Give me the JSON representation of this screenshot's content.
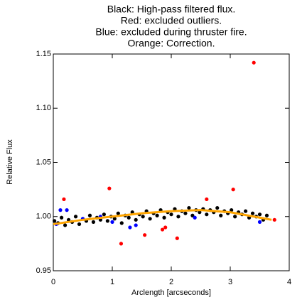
{
  "chart_data": {
    "type": "scatter",
    "title_lines": [
      "Black: High-pass filtered flux.",
      "Red: excluded outliers.",
      "Blue: excluded during thruster fire.",
      "Orange: Correction."
    ],
    "x_label": "Arclength [arcseconds]",
    "y_label": "Relative Flux",
    "xlim": [
      0,
      4
    ],
    "xticks": [
      0,
      1,
      2,
      3,
      4
    ],
    "ylim": [
      0.95,
      1.15
    ],
    "yticks": [
      0.95,
      {
        "value": 1.0,
        "label": "1.00"
      },
      1.05,
      {
        "value": 1.1,
        "label": "1.10"
      },
      1.15
    ],
    "series": [
      {
        "color": "#000000",
        "mode": "markers",
        "x": [
          0.02,
          0.08,
          0.14,
          0.2,
          0.26,
          0.32,
          0.38,
          0.44,
          0.5,
          0.56,
          0.62,
          0.68,
          0.74,
          0.8,
          0.86,
          0.92,
          0.98,
          1.04,
          1.1,
          1.16,
          1.22,
          1.28,
          1.34,
          1.4,
          1.46,
          1.52,
          1.58,
          1.64,
          1.7,
          1.76,
          1.82,
          1.88,
          1.94,
          2.0,
          2.06,
          2.12,
          2.18,
          2.24,
          2.3,
          2.36,
          2.42,
          2.48,
          2.54,
          2.6,
          2.66,
          2.72,
          2.78,
          2.84,
          2.9,
          2.96,
          3.02,
          3.08,
          3.14,
          3.2,
          3.26,
          3.32,
          3.38,
          3.44,
          3.5,
          3.56,
          3.62
        ],
        "values": [
          0.996,
          0.994,
          0.999,
          0.992,
          0.997,
          0.995,
          1.0,
          0.993,
          0.998,
          0.996,
          1.001,
          0.995,
          0.999,
          0.997,
          1.002,
          0.996,
          1.0,
          0.998,
          1.003,
          0.994,
          1.001,
          0.999,
          1.004,
          0.997,
          1.002,
          1.0,
          1.005,
          0.998,
          1.003,
          1.001,
          1.006,
          0.999,
          1.004,
          1.002,
          1.007,
          1.0,
          1.005,
          1.003,
          1.008,
          1.001,
          1.006,
          1.004,
          1.007,
          1.002,
          1.006,
          1.004,
          1.008,
          1.001,
          1.005,
          1.003,
          1.006,
          1.0,
          1.004,
          1.002,
          1.005,
          0.999,
          1.003,
          1.0,
          1.002,
          0.997,
          1.001
        ]
      },
      {
        "color": "#0000ff",
        "mode": "markers",
        "x": [
          0.05,
          0.12,
          0.23,
          0.5,
          0.8,
          1.0,
          1.3,
          1.4,
          2.4,
          3.5
        ],
        "values": [
          0.993,
          1.006,
          1.006,
          0.998,
          1.0,
          0.995,
          0.99,
          0.992,
          0.999,
          0.995
        ]
      },
      {
        "color": "#ff0000",
        "mode": "markers",
        "x": [
          0.18,
          0.95,
          1.15,
          1.55,
          1.85,
          1.9,
          2.1,
          2.6,
          3.05,
          3.4,
          3.75
        ],
        "values": [
          1.016,
          1.026,
          0.975,
          0.983,
          0.988,
          0.99,
          0.98,
          1.016,
          1.025,
          1.142,
          0.997
        ]
      },
      {
        "color": "#ffa500",
        "mode": "line",
        "x": [
          0,
          0.5,
          1,
          1.5,
          2,
          2.5,
          3,
          3.5,
          3.7
        ],
        "values": [
          0.993,
          0.997,
          1.0,
          1.003,
          1.005,
          1.006,
          1.004,
          0.999,
          0.997
        ]
      }
    ]
  }
}
